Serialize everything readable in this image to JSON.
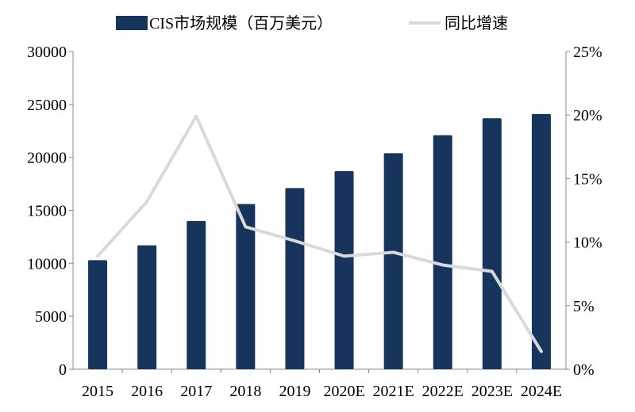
{
  "chart_data": {
    "type": "bar+line",
    "categories": [
      "2015",
      "2016",
      "2017",
      "2018",
      "2019",
      "2020E",
      "2021E",
      "2022E",
      "2023E",
      "2024E"
    ],
    "series": [
      {
        "name": "CIS市场规模（百万美元）",
        "type": "bar",
        "axis": "left",
        "color": "#17355c",
        "values": [
          10300,
          11700,
          14000,
          15600,
          17100,
          18700,
          20400,
          22100,
          23700,
          24100
        ]
      },
      {
        "name": "同比增速",
        "type": "line",
        "axis": "right",
        "color": "#d9d9d9",
        "values": [
          8.9,
          13.2,
          19.9,
          11.2,
          10.1,
          8.9,
          9.2,
          8.2,
          7.7,
          1.4
        ]
      }
    ],
    "left_axis": {
      "ylim": [
        0,
        30000
      ],
      "ticks": [
        "0",
        "5000",
        "10000",
        "15000",
        "20000",
        "25000",
        "30000"
      ]
    },
    "right_axis": {
      "ylim": [
        0,
        25
      ],
      "unit": "%",
      "ticks": [
        "0%",
        "5%",
        "10%",
        "15%",
        "20%",
        "25%"
      ]
    },
    "grid": false,
    "legend": "top"
  }
}
